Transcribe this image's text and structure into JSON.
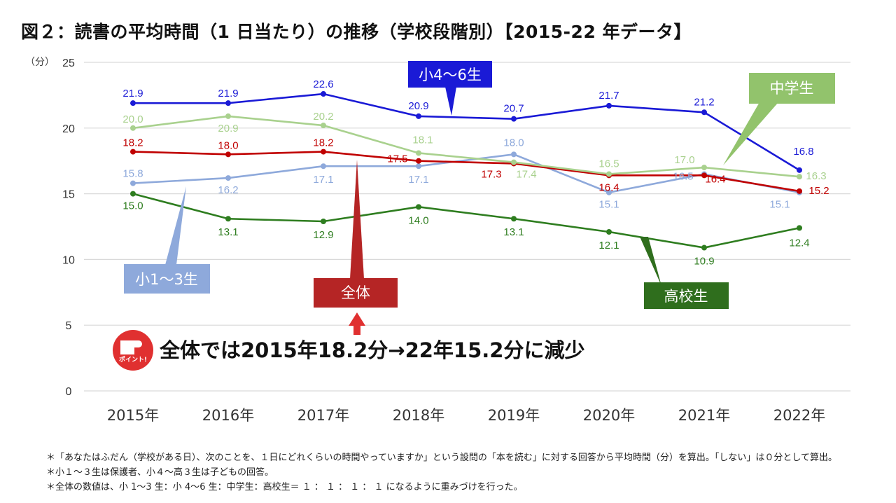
{
  "title": "図２：読書の平均時間（1 日当たり）の推移（学校段階別）【2015-22 年データ】",
  "chart_data": {
    "type": "line",
    "title": "図２：読書の平均時間（1 日当たり）の推移（学校段階別）【2015-22 年データ】",
    "y_unit_label": "（分）",
    "ylim": [
      0,
      25
    ],
    "yticks": [
      "0",
      "5",
      "10",
      "15",
      "20",
      "25"
    ],
    "categories": [
      "2015年",
      "2016年",
      "2017年",
      "2018年",
      "2019年",
      "2020年",
      "2021年",
      "2022年"
    ],
    "grid": true,
    "series": [
      {
        "name": "小4〜6生",
        "color": "#1a1ad6",
        "values": [
          21.9,
          21.9,
          22.6,
          20.9,
          20.7,
          21.7,
          21.2,
          16.8
        ],
        "labels": [
          "21.9",
          "21.9",
          "22.6",
          "20.9",
          "20.7",
          "21.7",
          "21.2",
          "16.8"
        ]
      },
      {
        "name": "中学生",
        "color": "#a9d18e",
        "values": [
          20.0,
          20.9,
          20.2,
          18.1,
          17.4,
          16.5,
          17.0,
          16.3
        ],
        "labels": [
          "20.0",
          "20.9",
          "20.2",
          "18.1",
          "17.4",
          "16.5",
          "17.0",
          "16.3"
        ]
      },
      {
        "name": "全体",
        "color": "#c00000",
        "values": [
          18.2,
          18.0,
          18.2,
          17.5,
          17.3,
          16.4,
          16.4,
          15.2
        ],
        "labels": [
          "18.2",
          "18.0",
          "18.2",
          "17.5",
          "17.3",
          "16.4",
          "16.4",
          "15.2"
        ]
      },
      {
        "name": "小1〜3生",
        "color": "#8ea9db",
        "values": [
          15.8,
          16.2,
          17.1,
          17.1,
          18.0,
          15.1,
          16.5,
          15.1
        ],
        "labels": [
          "15.8",
          "16.2",
          "17.1",
          "17.1",
          "18.0",
          "15.1",
          "16.5",
          "15.1"
        ]
      },
      {
        "name": "高校生",
        "color": "#2e7d1f",
        "values": [
          15.0,
          13.1,
          12.9,
          14.0,
          13.1,
          12.1,
          10.9,
          12.4
        ],
        "labels": [
          "15.0",
          "13.1",
          "12.9",
          "14.0",
          "13.1",
          "12.1",
          "10.9",
          "12.4"
        ]
      }
    ],
    "callouts": {
      "grade46": "小4〜6生",
      "junior": "中学生",
      "grade13": "小1〜3生",
      "overall": "全体",
      "high": "高校生"
    },
    "point_badge": "ポイント!",
    "point_message": "全体では2015年18.2分→22年15.2分に減少"
  },
  "notes": [
    "＊「あなたはふだん（学校がある日）、次のことを、１日にどれくらいの時間やっていますか」という設問の「本を読む」に対する回答から平均時間（分）を算出。「しない」は０分として算出。",
    "＊小１～３生は保護者、小４～高３生は子どもの回答。",
    "＊全体の数値は、小 1～3 生：小 4～6 生：中学生：高校生＝ １ ： １ ： １ ： １ になるように重みづけを行った。"
  ],
  "colors": {
    "grade46": "#1a1ad6",
    "junior": "#a9d18e",
    "overall": "#c00000",
    "grade13": "#8ea9db",
    "high": "#2e7d1f",
    "junior_callout": "#92c36c",
    "overall_callout": "#b52525",
    "high_callout": "#2f6e1d",
    "grid": "#d9d9d9"
  }
}
